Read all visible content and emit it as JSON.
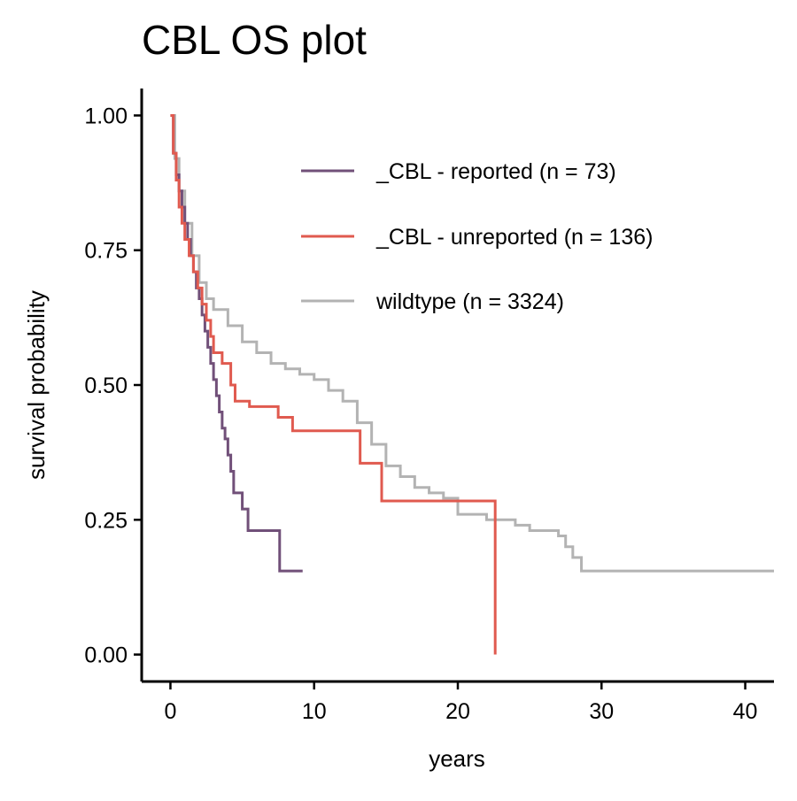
{
  "chart_data": {
    "type": "line",
    "title": "CBL OS plot",
    "xlabel": "years",
    "ylabel": "survival probability",
    "xlim": [
      -2,
      42
    ],
    "ylim": [
      -0.05,
      1.05
    ],
    "x_ticks": [
      0,
      10,
      20,
      30,
      40
    ],
    "y_ticks": [
      0.0,
      0.25,
      0.5,
      0.75,
      1.0
    ],
    "x_tick_labels": [
      "0",
      "10",
      "20",
      "30",
      "40"
    ],
    "y_tick_labels": [
      "0.00",
      "0.25",
      "0.50",
      "0.75",
      "1.00"
    ],
    "grid": false,
    "legend_position": "top-right",
    "series": [
      {
        "name": "_CBL - reported (n = 73)",
        "color": "#715079",
        "step": true,
        "points": [
          [
            0,
            1.0
          ],
          [
            0.2,
            0.93
          ],
          [
            0.4,
            0.89
          ],
          [
            0.6,
            0.86
          ],
          [
            0.8,
            0.83
          ],
          [
            1.0,
            0.8
          ],
          [
            1.2,
            0.77
          ],
          [
            1.4,
            0.74
          ],
          [
            1.6,
            0.71
          ],
          [
            1.8,
            0.68
          ],
          [
            2.0,
            0.66
          ],
          [
            2.2,
            0.63
          ],
          [
            2.4,
            0.6
          ],
          [
            2.6,
            0.57
          ],
          [
            2.8,
            0.54
          ],
          [
            3.0,
            0.51
          ],
          [
            3.2,
            0.48
          ],
          [
            3.4,
            0.45
          ],
          [
            3.6,
            0.42
          ],
          [
            3.8,
            0.4
          ],
          [
            4.0,
            0.37
          ],
          [
            4.2,
            0.34
          ],
          [
            4.4,
            0.3
          ],
          [
            5.0,
            0.27
          ],
          [
            5.4,
            0.23
          ],
          [
            7.6,
            0.23
          ],
          [
            7.6,
            0.155
          ],
          [
            9.2,
            0.155
          ]
        ]
      },
      {
        "name": "_CBL - unreported (n = 136)",
        "color": "#e05a4f",
        "step": true,
        "points": [
          [
            0,
            1.0
          ],
          [
            0.2,
            0.93
          ],
          [
            0.4,
            0.88
          ],
          [
            0.6,
            0.83
          ],
          [
            0.8,
            0.8
          ],
          [
            1.0,
            0.77
          ],
          [
            1.3,
            0.74
          ],
          [
            1.6,
            0.71
          ],
          [
            1.9,
            0.68
          ],
          [
            2.2,
            0.65
          ],
          [
            2.5,
            0.62
          ],
          [
            2.8,
            0.59
          ],
          [
            3.0,
            0.56
          ],
          [
            3.6,
            0.54
          ],
          [
            4.2,
            0.5
          ],
          [
            4.5,
            0.47
          ],
          [
            5.5,
            0.46
          ],
          [
            7.5,
            0.44
          ],
          [
            8.5,
            0.415
          ],
          [
            13.2,
            0.415
          ],
          [
            13.2,
            0.355
          ],
          [
            14.7,
            0.355
          ],
          [
            14.7,
            0.285
          ],
          [
            22.6,
            0.285
          ],
          [
            22.6,
            0.0
          ]
        ]
      },
      {
        "name": "wildtype (n = 3324)",
        "color": "#b3b3b3",
        "step": true,
        "points": [
          [
            0,
            1.0
          ],
          [
            0.3,
            0.92
          ],
          [
            0.6,
            0.86
          ],
          [
            1.0,
            0.8
          ],
          [
            1.5,
            0.74
          ],
          [
            2.0,
            0.69
          ],
          [
            2.5,
            0.66
          ],
          [
            3.0,
            0.64
          ],
          [
            4.0,
            0.61
          ],
          [
            5.0,
            0.58
          ],
          [
            6.0,
            0.56
          ],
          [
            7.0,
            0.54
          ],
          [
            8.0,
            0.53
          ],
          [
            9.0,
            0.52
          ],
          [
            10.0,
            0.51
          ],
          [
            11.0,
            0.49
          ],
          [
            12.0,
            0.47
          ],
          [
            13.0,
            0.43
          ],
          [
            14.0,
            0.39
          ],
          [
            15.0,
            0.35
          ],
          [
            16.0,
            0.33
          ],
          [
            17.0,
            0.31
          ],
          [
            18.0,
            0.3
          ],
          [
            19.0,
            0.29
          ],
          [
            20.0,
            0.26
          ],
          [
            22.0,
            0.25
          ],
          [
            24.0,
            0.24
          ],
          [
            25.0,
            0.23
          ],
          [
            27.0,
            0.22
          ],
          [
            27.5,
            0.2
          ],
          [
            28.0,
            0.18
          ],
          [
            28.6,
            0.155
          ],
          [
            42,
            0.155
          ]
        ]
      }
    ]
  }
}
